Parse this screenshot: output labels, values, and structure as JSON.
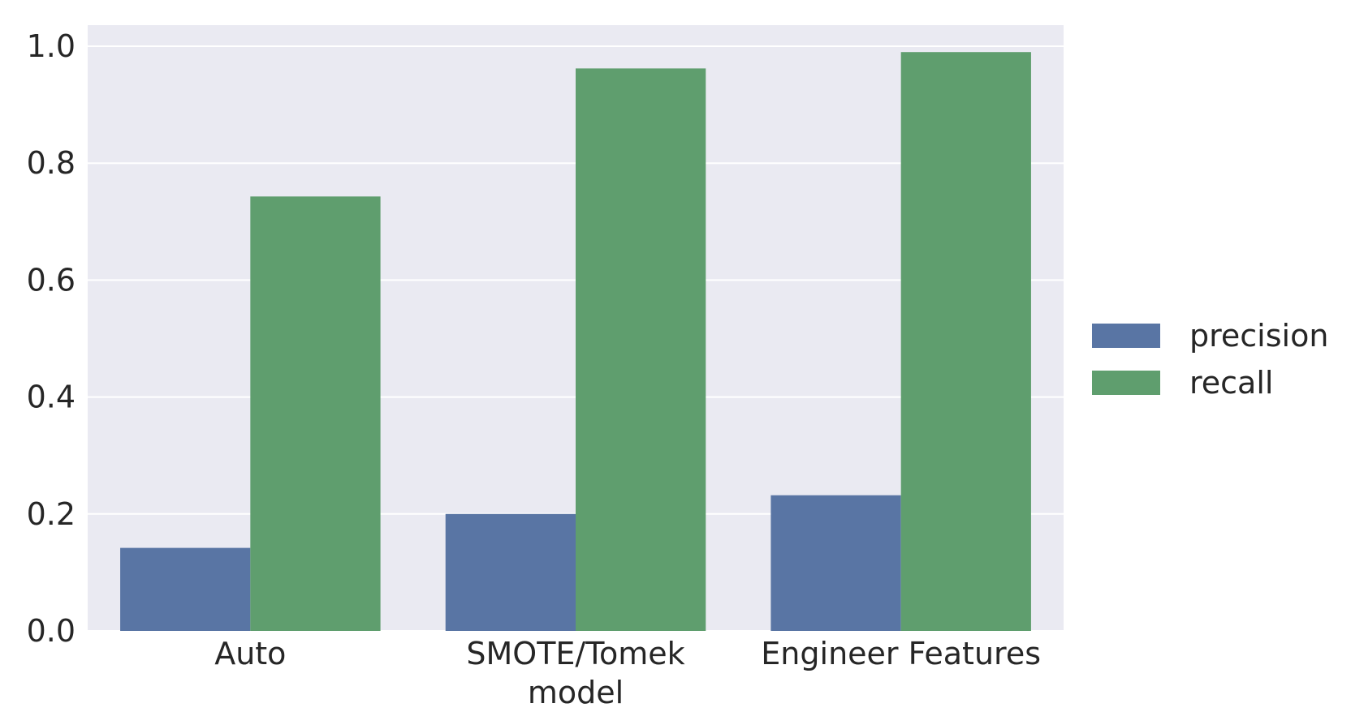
{
  "chart_data": {
    "type": "bar",
    "categories": [
      "Auto",
      "SMOTE/Tomek",
      "Engineer Features"
    ],
    "series": [
      {
        "name": "precision",
        "values": [
          0.142,
          0.2,
          0.232
        ]
      },
      {
        "name": "recall",
        "values": [
          0.743,
          0.962,
          0.99
        ]
      }
    ],
    "xlabel": "model",
    "ylabel": "",
    "ylim": [
      0,
      1.0
    ],
    "yticks": [
      0.0,
      0.2,
      0.4,
      0.6,
      0.8,
      1.0
    ],
    "ytick_labels": [
      "0.0",
      "0.2",
      "0.4",
      "0.6",
      "0.8",
      "1.0"
    ],
    "grid": true,
    "legend_position": "right",
    "colors": {
      "precision": "#5975a4",
      "recall": "#5f9e6e",
      "plot_background": "#eaeaf2",
      "grid": "#ffffff",
      "text": "#262626"
    }
  }
}
